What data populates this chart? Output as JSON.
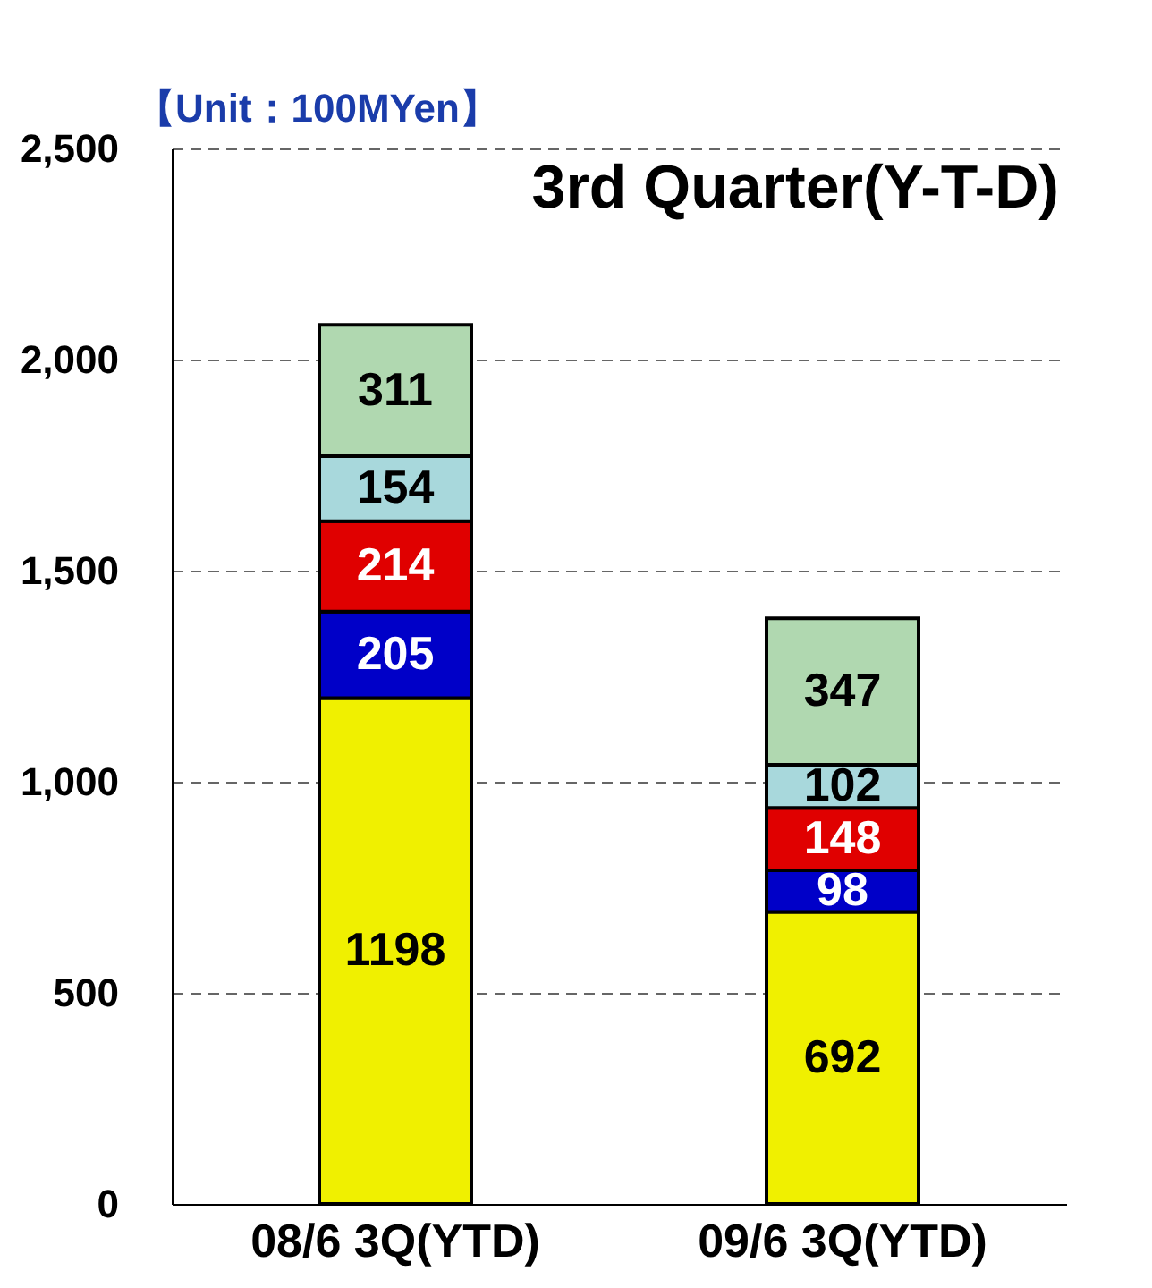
{
  "chart_data": {
    "type": "bar",
    "title": "3rd Quarter(Y-T-D)",
    "annotations": [
      "【Unit：100MYen】"
    ],
    "categories": [
      "08/6 3Q(YTD)",
      "09/6 3Q(YTD)"
    ],
    "stacked": true,
    "data_labels": true,
    "grid": "y",
    "ylim": [
      0,
      2500
    ],
    "yticks": [
      {
        "value": 0,
        "label": "0"
      },
      {
        "value": 500,
        "label": "500"
      },
      {
        "value": 1000,
        "label": "1,000"
      },
      {
        "value": 1500,
        "label": "1,500"
      },
      {
        "value": 2000,
        "label": "2,000"
      },
      {
        "value": 2500,
        "label": "2,500"
      }
    ],
    "series": [
      {
        "color": "#f0f000",
        "values": [
          1198,
          692
        ]
      },
      {
        "color": "#0000c8",
        "values": [
          205,
          98
        ]
      },
      {
        "color": "#e00000",
        "values": [
          214,
          148
        ]
      },
      {
        "color": "#a8d8dc",
        "values": [
          154,
          102
        ]
      },
      {
        "color": "#b0d8b0",
        "values": [
          311,
          347
        ]
      }
    ]
  }
}
